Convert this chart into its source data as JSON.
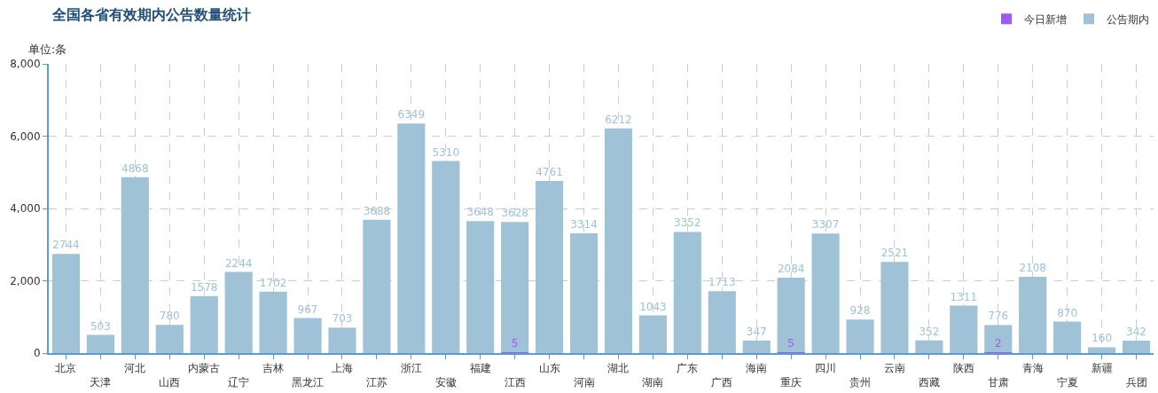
{
  "chart_data": {
    "type": "bar",
    "title": "全国各省有效期内公告数量统计",
    "ylabel": "单位:条",
    "categories": [
      "北京",
      "天津",
      "河北",
      "山西",
      "内蒙古",
      "辽宁",
      "吉林",
      "黑龙江",
      "上海",
      "江苏",
      "浙江",
      "安徽",
      "福建",
      "江西",
      "山东",
      "河南",
      "湖北",
      "湖南",
      "广东",
      "广西",
      "海南",
      "重庆",
      "四川",
      "贵州",
      "云南",
      "西藏",
      "陕西",
      "甘肃",
      "青海",
      "宁夏",
      "新疆",
      "兵团"
    ],
    "series": [
      {
        "name": "公告期内",
        "color": "#9fc2d6",
        "values": [
          2744,
          503,
          4868,
          780,
          1578,
          2244,
          1702,
          967,
          703,
          3688,
          6349,
          5310,
          3648,
          3628,
          4761,
          3314,
          6212,
          1043,
          3352,
          1713,
          347,
          2084,
          3307,
          928,
          2521,
          352,
          1311,
          776,
          2108,
          870,
          160,
          342
        ],
        "value_labels": [
          "2744",
          "503",
          "4868",
          "780",
          "1578",
          "2244",
          "1702",
          "967",
          "703",
          "3688",
          "6349",
          "5310",
          "3648",
          "3628",
          "4761",
          "3314",
          "6212",
          "1043",
          "3352",
          "1713",
          "347",
          "2084",
          "3307",
          "928",
          "2521",
          "352",
          "1311",
          "776",
          "2108",
          "870",
          "160",
          "342"
        ]
      },
      {
        "name": "今日新增",
        "color": "#9b5cf6",
        "values": [
          0,
          0,
          0,
          0,
          0,
          0,
          0,
          0,
          0,
          0,
          0,
          0,
          0,
          5,
          0,
          0,
          0,
          0,
          0,
          0,
          0,
          5,
          0,
          0,
          0,
          0,
          0,
          2,
          0,
          0,
          0,
          0
        ],
        "value_labels": [
          null,
          null,
          null,
          null,
          null,
          null,
          null,
          null,
          null,
          null,
          null,
          null,
          null,
          "5",
          null,
          null,
          null,
          null,
          null,
          null,
          null,
          "5",
          null,
          null,
          null,
          null,
          null,
          "2",
          null,
          null,
          null,
          null
        ]
      }
    ],
    "ylim": [
      0,
      8000
    ],
    "yticks": [
      {
        "value": 0,
        "label": "0"
      },
      {
        "value": 2000,
        "label": "2,000"
      },
      {
        "value": 4000,
        "label": "4,000"
      },
      {
        "value": 6000,
        "label": "6,000"
      },
      {
        "value": 8000,
        "label": "8,000"
      }
    ],
    "grid": true,
    "legend": "top right"
  }
}
